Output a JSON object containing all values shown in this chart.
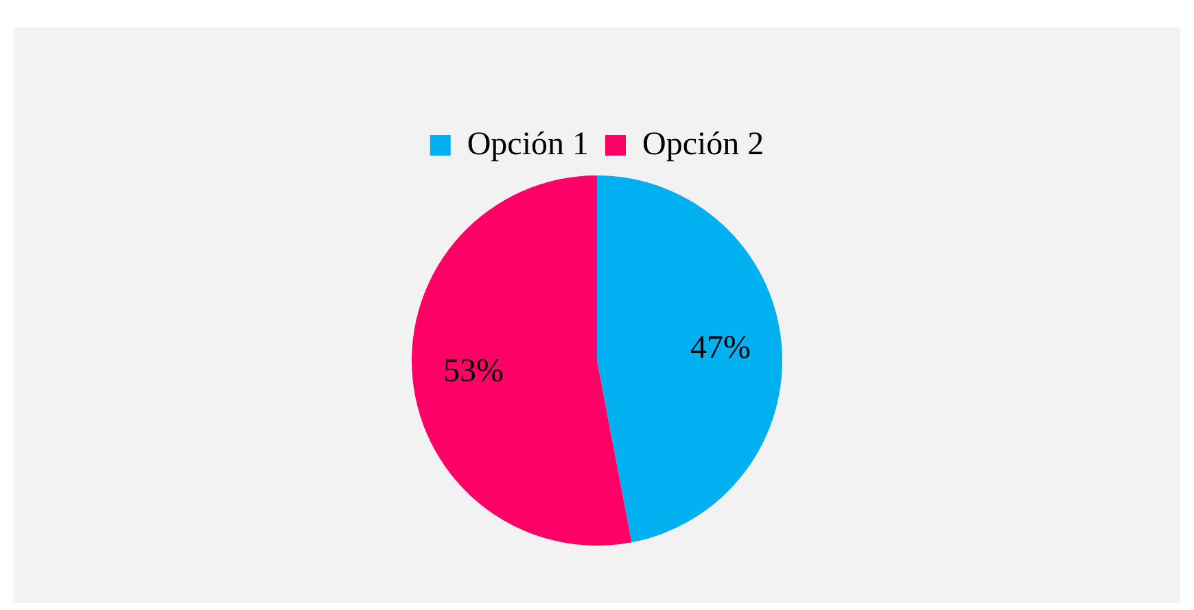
{
  "chart_data": {
    "type": "pie",
    "categories": [
      "Opción 1",
      "Opción 2"
    ],
    "values": [
      47,
      53
    ],
    "colors": [
      "#00b0f0",
      "#ff0066"
    ],
    "value_labels": [
      "47%",
      "53%"
    ],
    "legend": "top"
  }
}
